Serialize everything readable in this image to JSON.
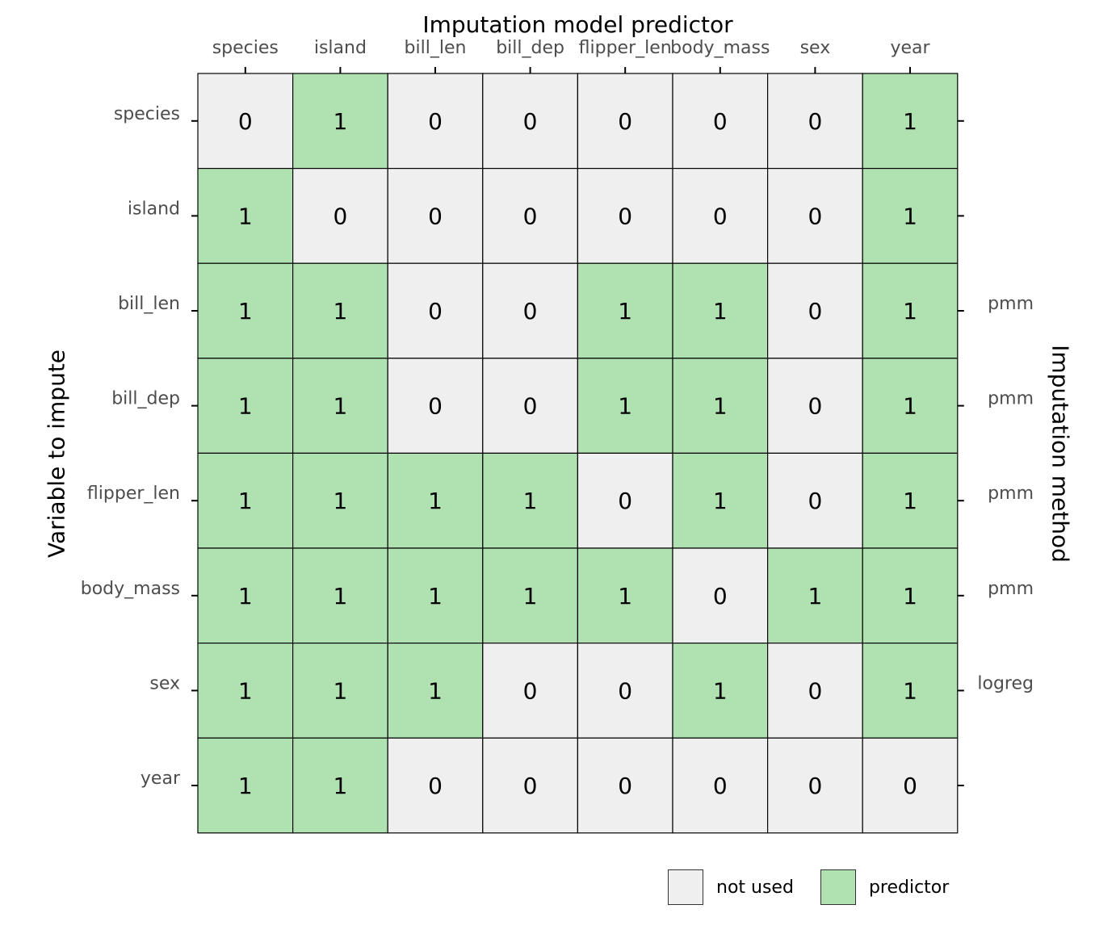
{
  "chart_data": {
    "type": "heatmap",
    "title": "",
    "xlabel": "Imputation model predictor",
    "ylabel": "Variable to impute",
    "secondary_ylabel": "Imputation method",
    "columns": [
      "species",
      "island",
      "bill_len",
      "bill_dep",
      "flipper_len",
      "body_mass",
      "sex",
      "year"
    ],
    "rows": [
      "species",
      "island",
      "bill_len",
      "bill_dep",
      "flipper_len",
      "body_mass",
      "sex",
      "year"
    ],
    "methods": [
      "",
      "",
      "pmm",
      "pmm",
      "pmm",
      "pmm",
      "logreg",
      ""
    ],
    "matrix": [
      [
        0,
        1,
        0,
        0,
        0,
        0,
        0,
        1
      ],
      [
        1,
        0,
        0,
        0,
        0,
        0,
        0,
        1
      ],
      [
        1,
        1,
        0,
        0,
        1,
        1,
        0,
        1
      ],
      [
        1,
        1,
        0,
        0,
        1,
        1,
        0,
        1
      ],
      [
        1,
        1,
        1,
        1,
        0,
        1,
        0,
        1
      ],
      [
        1,
        1,
        1,
        1,
        1,
        0,
        1,
        1
      ],
      [
        1,
        1,
        1,
        0,
        0,
        1,
        0,
        1
      ],
      [
        1,
        1,
        0,
        0,
        0,
        0,
        0,
        0
      ]
    ],
    "legend": [
      {
        "label": "not used",
        "value": 0,
        "color": "#efefef"
      },
      {
        "label": "predictor",
        "value": 1,
        "color": "#b0e2b1"
      }
    ],
    "legend_position": "bottom-right",
    "grid": false
  }
}
